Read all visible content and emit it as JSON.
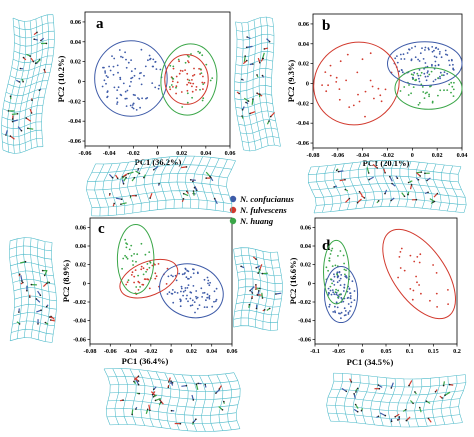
{
  "legend": [
    {
      "name": "N. confucianus",
      "color": "#3e5ba8"
    },
    {
      "name": "N. fulvescens",
      "color": "#d23a2e"
    },
    {
      "name": "N. huang",
      "color": "#3aa648"
    }
  ],
  "grid_color": "#48b8c8",
  "chart_data": [
    {
      "type": "scatter",
      "panel_label": "a",
      "xlabel": "PC1 (36.2%)",
      "ylabel": "PC2 (10.2%)",
      "xticks": [
        -0.06,
        -0.04,
        -0.02,
        0,
        0.02,
        0.04,
        0.06
      ],
      "yticks": [
        -0.06,
        -0.04,
        -0.02,
        0,
        0.02,
        0.04,
        0.06
      ],
      "xlim": [
        -0.06,
        0.06
      ],
      "ylim": [
        -0.065,
        0.07
      ],
      "series": [
        {
          "name": "N. confucianus",
          "center": [
            -0.022,
            0.003
          ],
          "semi_axes": [
            0.03,
            0.038
          ],
          "angle": 0,
          "n": 90
        },
        {
          "name": "N. fulvescens",
          "center": [
            0.024,
            0.002
          ],
          "semi_axes": [
            0.018,
            0.025
          ],
          "angle": 0,
          "n": 40
        },
        {
          "name": "N. huang",
          "center": [
            0.026,
            0.002
          ],
          "semi_axes": [
            0.023,
            0.036
          ],
          "angle": -8,
          "n": 30
        }
      ]
    },
    {
      "type": "scatter",
      "panel_label": "b",
      "xlabel": "PC1 (20.1%)",
      "ylabel": "PC2 (9.3%)",
      "xticks": [
        -0.08,
        -0.06,
        -0.04,
        -0.02,
        0,
        0.02,
        0.04
      ],
      "yticks": [
        -0.06,
        -0.04,
        -0.02,
        0,
        0.02,
        0.04,
        0.06
      ],
      "xlim": [
        -0.08,
        0.04
      ],
      "ylim": [
        -0.065,
        0.07
      ],
      "series": [
        {
          "name": "N. confucianus",
          "center": [
            0.01,
            0.02
          ],
          "semi_axes": [
            0.03,
            0.022
          ],
          "angle": 0,
          "n": 90
        },
        {
          "name": "N. fulvescens",
          "center": [
            -0.045,
            0.0
          ],
          "semi_axes": [
            0.035,
            0.041
          ],
          "angle": 30,
          "n": 30
        },
        {
          "name": "N. huang",
          "center": [
            0.013,
            -0.005
          ],
          "semi_axes": [
            0.027,
            0.021
          ],
          "angle": 0,
          "n": 45
        }
      ]
    },
    {
      "type": "scatter",
      "panel_label": "c",
      "xlabel": "PC1 (36.4%)",
      "ylabel": "PC2 (8.9%)",
      "xticks": [
        -0.08,
        -0.06,
        -0.04,
        -0.02,
        0,
        0.02,
        0.04,
        0.06
      ],
      "yticks": [
        -0.06,
        -0.04,
        -0.02,
        0,
        0.02,
        0.04,
        0.06
      ],
      "xlim": [
        -0.08,
        0.06
      ],
      "ylim": [
        -0.065,
        0.07
      ],
      "series": [
        {
          "name": "N. confucianus",
          "center": [
            0.02,
            -0.008
          ],
          "semi_axes": [
            0.032,
            0.028
          ],
          "angle": -20,
          "n": 85
        },
        {
          "name": "N. fulvescens",
          "center": [
            -0.022,
            0.005
          ],
          "semi_axes": [
            0.03,
            0.018
          ],
          "angle": 22,
          "n": 35
        },
        {
          "name": "N. huang",
          "center": [
            -0.035,
            0.026
          ],
          "semi_axes": [
            0.018,
            0.037
          ],
          "angle": 0,
          "n": 30
        }
      ]
    },
    {
      "type": "scatter",
      "panel_label": "d",
      "xlabel": "PC1 (34.5%)",
      "ylabel": "PC2 (16.6%)",
      "xticks": [
        -0.1,
        -0.05,
        0,
        0.05,
        0.1,
        0.15,
        0.2
      ],
      "yticks": [
        -0.06,
        -0.04,
        -0.02,
        0,
        0.02,
        0.04,
        0.06
      ],
      "xlim": [
        -0.1,
        0.2
      ],
      "ylim": [
        -0.065,
        0.07
      ],
      "series": [
        {
          "name": "N. confucianus",
          "center": [
            -0.045,
            -0.012
          ],
          "semi_axes": [
            0.035,
            0.03
          ],
          "angle": 0,
          "n": 90
        },
        {
          "name": "N. fulvescens",
          "center": [
            0.12,
            0.01
          ],
          "semi_axes": [
            0.055,
            0.055
          ],
          "angle": 35,
          "n": 25
        },
        {
          "name": "N. huang",
          "center": [
            -0.055,
            0.012
          ],
          "semi_axes": [
            0.027,
            0.034
          ],
          "angle": 0,
          "n": 30
        }
      ]
    }
  ]
}
